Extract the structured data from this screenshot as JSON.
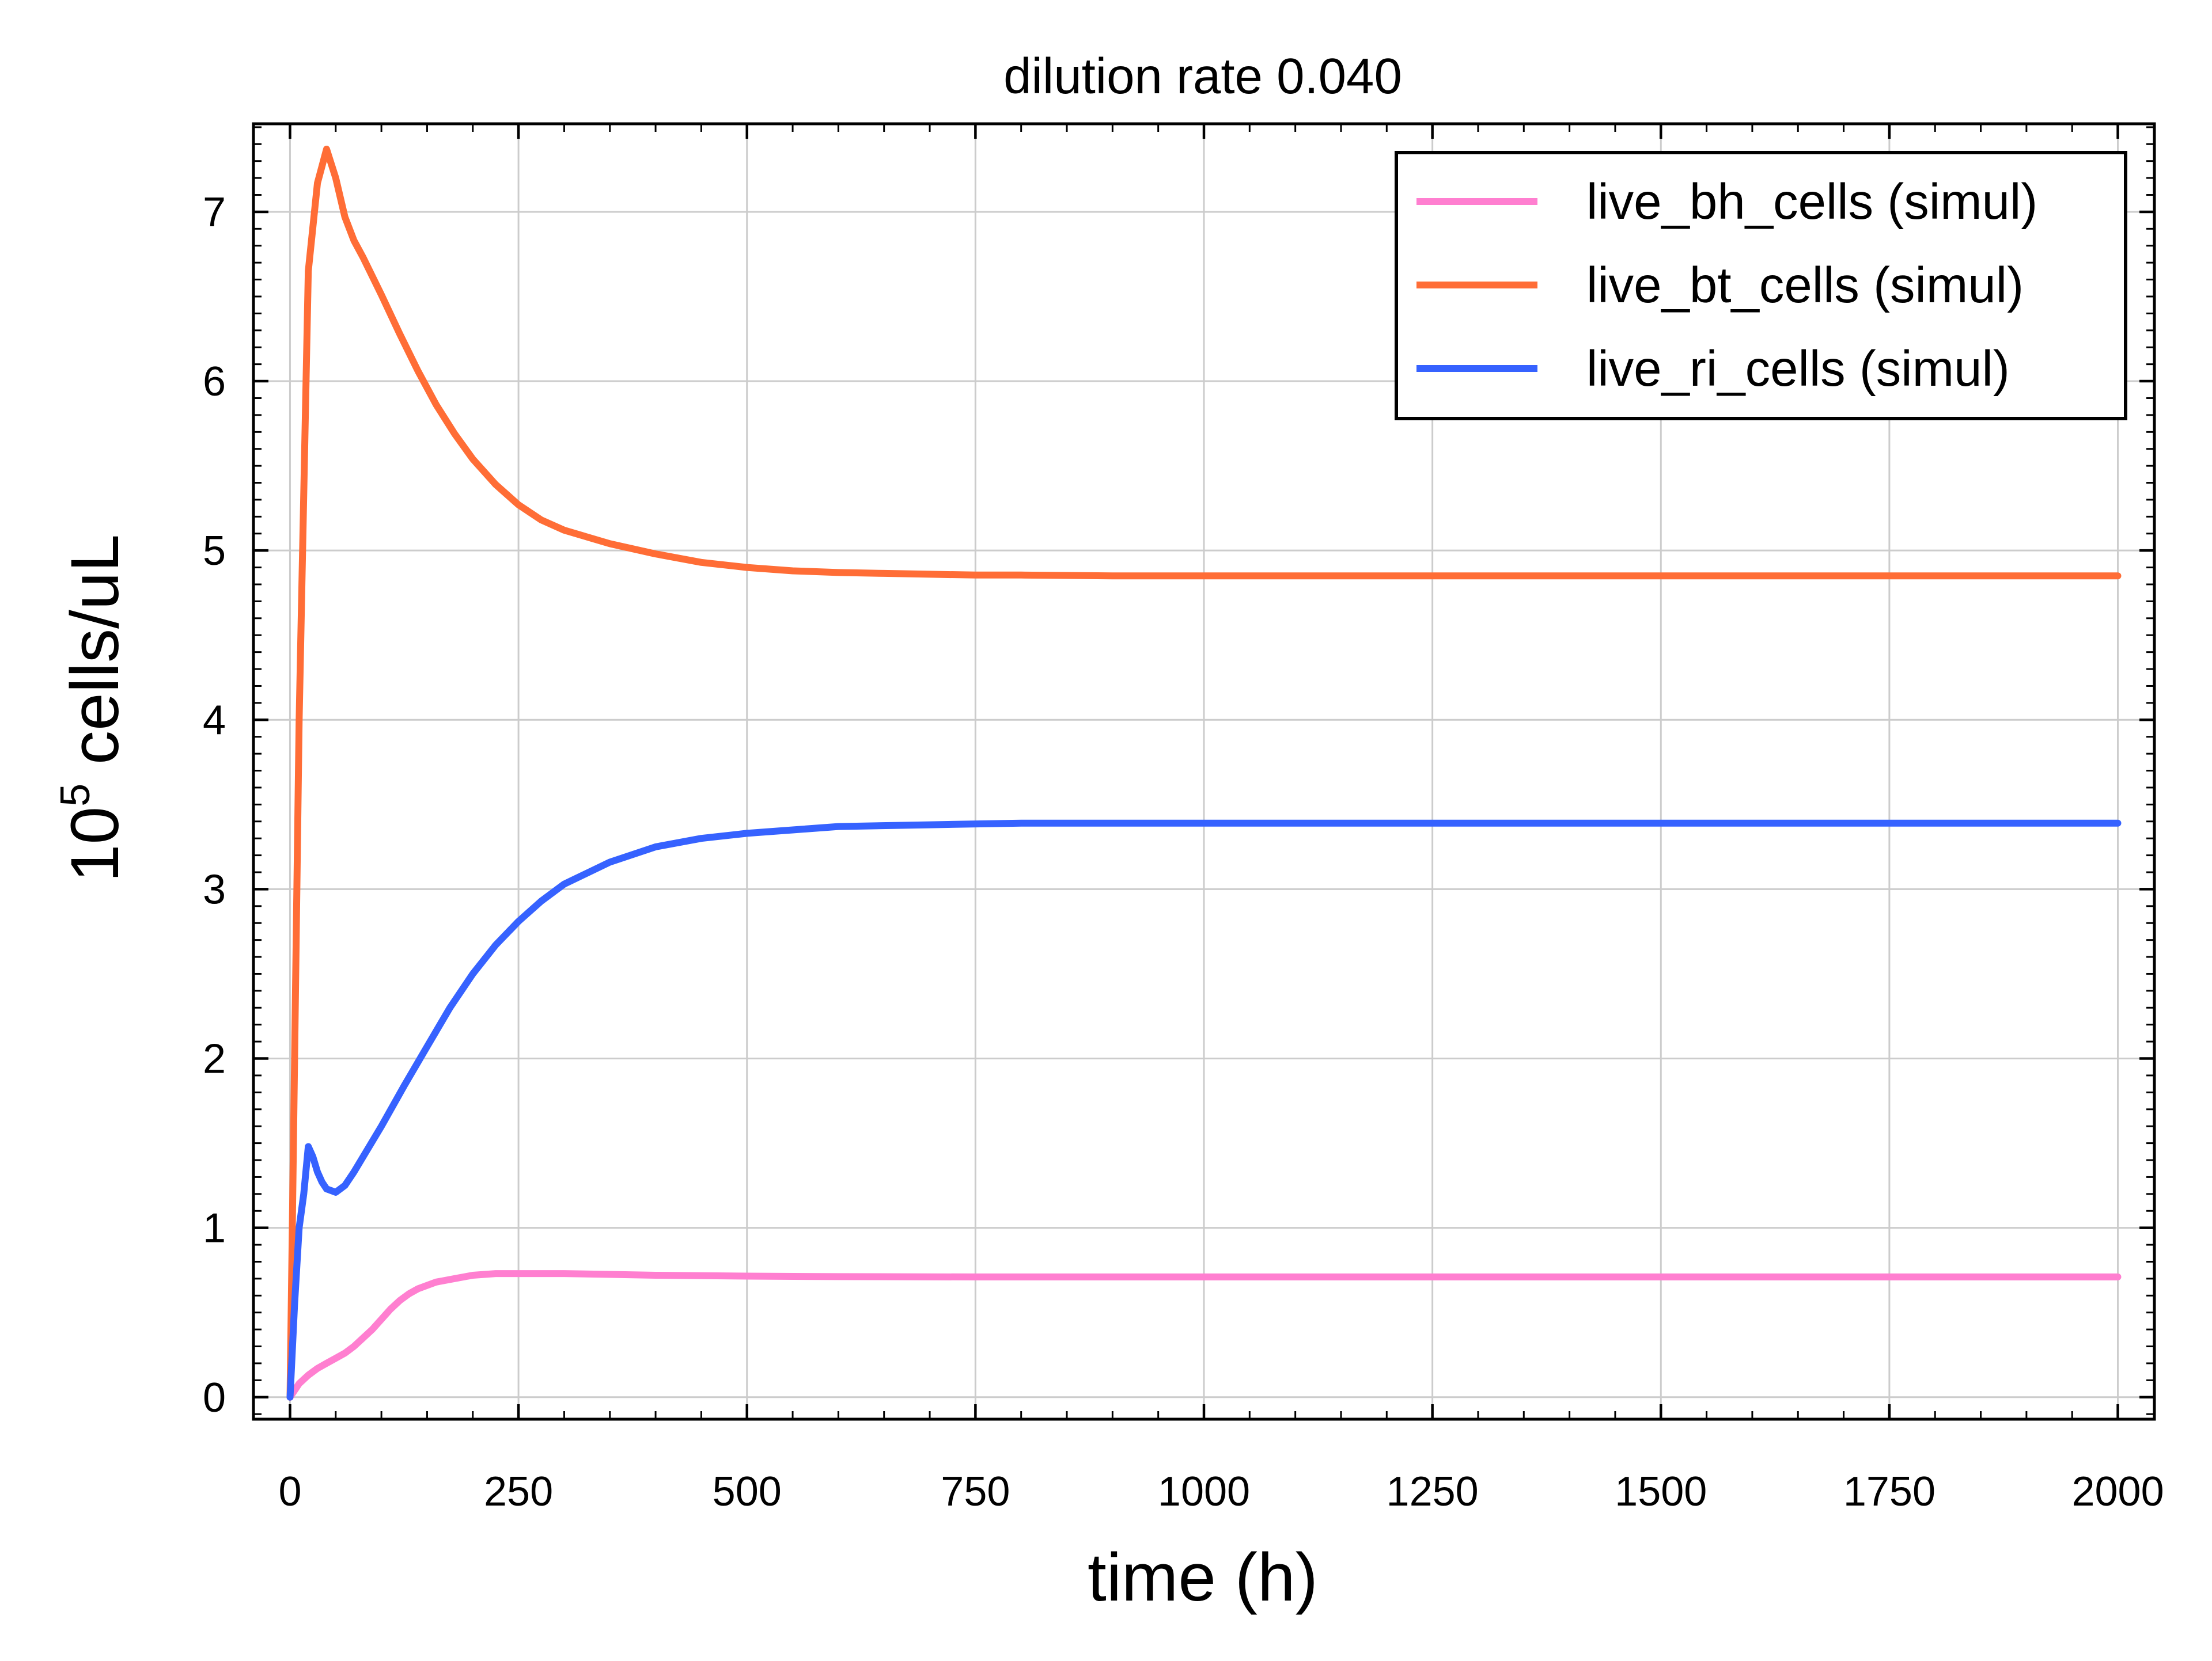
{
  "chart_data": {
    "type": "line",
    "title": "dilution rate 0.040",
    "xlabel": "time (h)",
    "ylabel": {
      "base": "10",
      "exponent": "5",
      "unit": " cells/uL"
    },
    "xlim": [
      -40,
      2040
    ],
    "ylim": [
      -0.13,
      7.52
    ],
    "xticks": [
      0,
      250,
      500,
      750,
      1000,
      1250,
      1500,
      1750,
      2000
    ],
    "xtick_labels": [
      "0",
      "250",
      "500",
      "750",
      "1000",
      "1250",
      "1500",
      "1750",
      "2000"
    ],
    "yticks": [
      0,
      1,
      2,
      3,
      4,
      5,
      6,
      7
    ],
    "ytick_labels": [
      "0",
      "1",
      "2",
      "3",
      "4",
      "5",
      "6",
      "7"
    ],
    "x_minor_step": 50,
    "y_minor_step": 0.1,
    "grid": true,
    "legend_position": "top-right",
    "series": [
      {
        "name": "live_bh_cells (simul)",
        "color": "#ff7fd0",
        "x": [
          0,
          10,
          20,
          30,
          40,
          50,
          60,
          70,
          80,
          90,
          100,
          110,
          120,
          130,
          140,
          150,
          160,
          180,
          200,
          225,
          250,
          300,
          350,
          400,
          500,
          600,
          750,
          1000,
          1250,
          1500,
          1750,
          2000
        ],
        "values": [
          0.0,
          0.08,
          0.13,
          0.17,
          0.2,
          0.23,
          0.26,
          0.3,
          0.35,
          0.4,
          0.46,
          0.52,
          0.57,
          0.61,
          0.64,
          0.66,
          0.68,
          0.7,
          0.72,
          0.73,
          0.73,
          0.73,
          0.725,
          0.72,
          0.715,
          0.712,
          0.71,
          0.71,
          0.71,
          0.71,
          0.71,
          0.71
        ]
      },
      {
        "name": "live_bt_cells (simul)",
        "color": "#ff6d36",
        "x": [
          0,
          10,
          20,
          30,
          40,
          50,
          60,
          70,
          80,
          100,
          120,
          140,
          160,
          180,
          200,
          225,
          250,
          275,
          300,
          350,
          400,
          450,
          500,
          550,
          600,
          650,
          700,
          750,
          800,
          900,
          1000,
          1250,
          1500,
          1750,
          2000
        ],
        "values": [
          0.0,
          4.0,
          6.65,
          7.17,
          7.37,
          7.2,
          6.97,
          6.83,
          6.73,
          6.51,
          6.28,
          6.06,
          5.86,
          5.69,
          5.54,
          5.39,
          5.27,
          5.18,
          5.12,
          5.04,
          4.98,
          4.93,
          4.9,
          4.88,
          4.87,
          4.865,
          4.86,
          4.855,
          4.855,
          4.85,
          4.85,
          4.85,
          4.85,
          4.85,
          4.85
        ]
      },
      {
        "name": "live_ri_cells (simul)",
        "color": "#3662ff",
        "x": [
          0,
          5,
          10,
          15,
          20,
          25,
          30,
          35,
          40,
          50,
          60,
          70,
          80,
          100,
          125,
          150,
          175,
          200,
          225,
          250,
          275,
          300,
          350,
          400,
          450,
          500,
          550,
          600,
          700,
          800,
          900,
          1000,
          1250,
          1500,
          1750,
          2000
        ],
        "values": [
          0.0,
          0.55,
          1.0,
          1.2,
          1.48,
          1.42,
          1.33,
          1.27,
          1.23,
          1.21,
          1.25,
          1.33,
          1.42,
          1.6,
          1.84,
          2.07,
          2.3,
          2.5,
          2.67,
          2.81,
          2.93,
          3.03,
          3.16,
          3.25,
          3.3,
          3.33,
          3.35,
          3.37,
          3.38,
          3.39,
          3.39,
          3.39,
          3.39,
          3.39,
          3.39,
          3.39
        ]
      }
    ]
  }
}
